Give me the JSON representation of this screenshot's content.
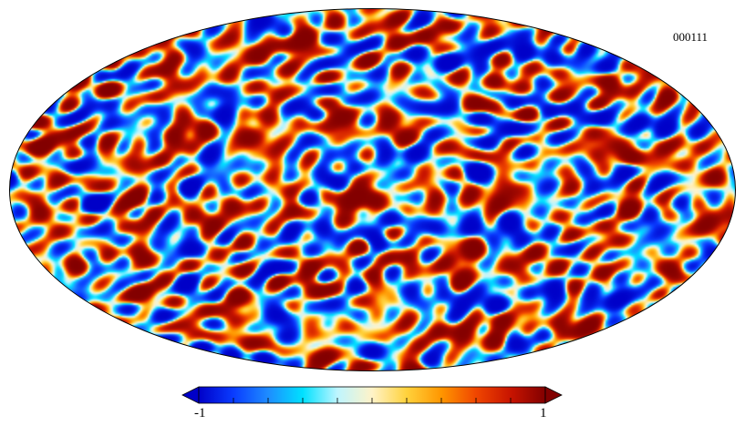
{
  "map": {
    "label": "000111",
    "projection": "mollweide",
    "colormap": [
      "#0000c8",
      "#0a3cff",
      "#1e8cff",
      "#00e1ff",
      "#bef5ff",
      "#fff3c8",
      "#ffd23c",
      "#ff9600",
      "#f04600",
      "#c81400",
      "#820000"
    ]
  },
  "colorbar": {
    "min_label": "-1",
    "max_label": "1",
    "tick_count": 10,
    "extend": "both"
  }
}
